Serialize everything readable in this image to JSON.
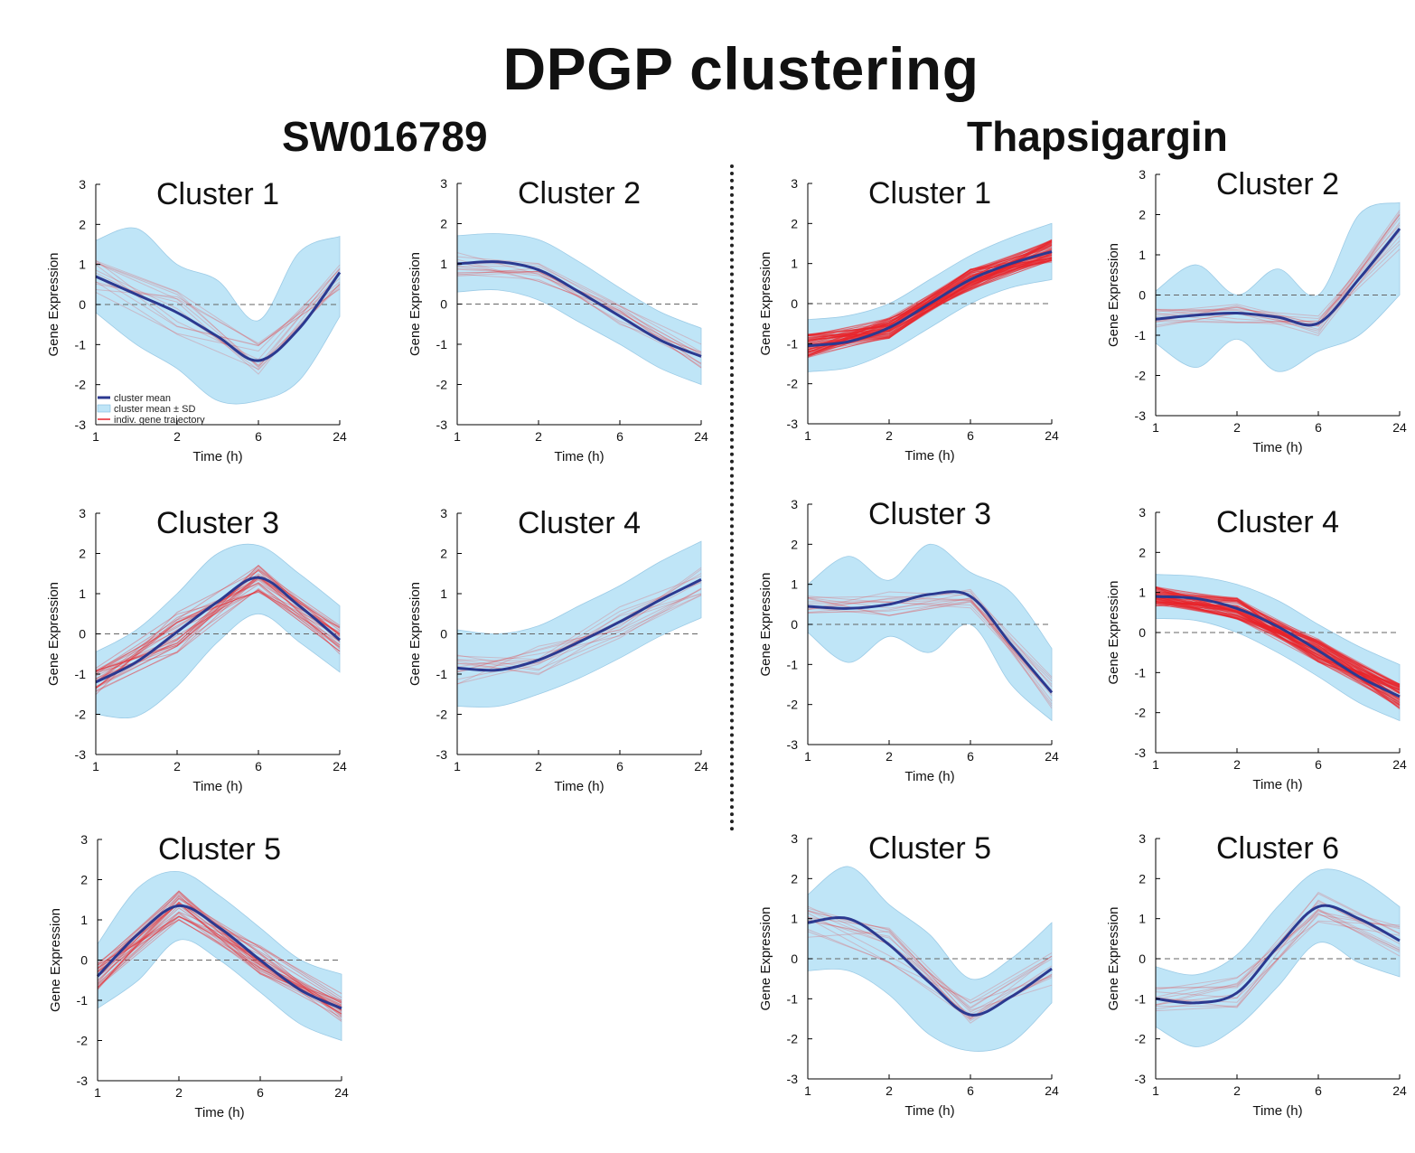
{
  "title": "DPGP clustering",
  "groups": [
    {
      "label": "SW016789"
    },
    {
      "label": "Thapsigargin"
    }
  ],
  "axis": {
    "xlabel": "Time (h)",
    "ylabel": "Gene Expression",
    "xticks": [
      "1",
      "2",
      "6",
      "24"
    ],
    "yticks": [
      "-3",
      "-2",
      "-1",
      "0",
      "1",
      "2",
      "3"
    ],
    "ylim": [
      -3,
      3
    ]
  },
  "legend": {
    "items": [
      "cluster mean",
      "cluster mean ± SD",
      "indiv. gene trajectory"
    ]
  },
  "colors": {
    "mean": "#2b3990",
    "band": "#bfe5f7",
    "trajectory": "#e8242a",
    "zero_line": "#666666"
  },
  "chart_data": [
    {
      "type": "line",
      "group": "SW016789",
      "title": "Cluster 1",
      "density": "light",
      "x": [
        0,
        0.5,
        1,
        1.5,
        2,
        2.5,
        3
      ],
      "mean": [
        0.7,
        0.25,
        -0.2,
        -0.8,
        -1.4,
        -0.6,
        0.8
      ],
      "upper": [
        1.6,
        1.9,
        1.0,
        0.6,
        -0.4,
        1.3,
        1.7
      ],
      "lower": [
        -0.2,
        -1.0,
        -1.6,
        -2.4,
        -2.4,
        -1.9,
        -0.3
      ]
    },
    {
      "type": "line",
      "group": "SW016789",
      "title": "Cluster 2",
      "density": "light",
      "x": [
        0,
        0.5,
        1,
        1.5,
        2,
        2.5,
        3
      ],
      "mean": [
        1.0,
        1.05,
        0.85,
        0.3,
        -0.3,
        -0.9,
        -1.3
      ],
      "upper": [
        1.7,
        1.75,
        1.6,
        1.05,
        0.4,
        -0.2,
        -0.6
      ],
      "lower": [
        0.3,
        0.35,
        0.1,
        -0.45,
        -1.0,
        -1.6,
        -2.0
      ]
    },
    {
      "type": "line",
      "group": "SW016789",
      "title": "Cluster 3",
      "density": "medium",
      "x": [
        0,
        0.5,
        1,
        1.5,
        2,
        2.5,
        3
      ],
      "mean": [
        -1.2,
        -0.7,
        0.05,
        0.8,
        1.4,
        0.7,
        -0.15
      ],
      "upper": [
        -0.45,
        0.1,
        1.0,
        2.0,
        2.2,
        1.5,
        0.7
      ],
      "lower": [
        -2.0,
        -2.05,
        -1.3,
        -0.2,
        0.5,
        -0.2,
        -0.95
      ]
    },
    {
      "type": "line",
      "group": "SW016789",
      "title": "Cluster 4",
      "density": "light",
      "x": [
        0,
        0.5,
        1,
        1.5,
        2,
        2.5,
        3
      ],
      "mean": [
        -0.85,
        -0.9,
        -0.65,
        -0.2,
        0.3,
        0.85,
        1.35
      ],
      "upper": [
        0.1,
        0.0,
        0.2,
        0.7,
        1.2,
        1.8,
        2.3
      ],
      "lower": [
        -1.8,
        -1.8,
        -1.5,
        -1.1,
        -0.6,
        -0.05,
        0.4
      ]
    },
    {
      "type": "line",
      "group": "SW016789",
      "title": "Cluster 5",
      "density": "medium",
      "x": [
        0,
        0.5,
        1,
        1.5,
        2,
        2.5,
        3
      ],
      "mean": [
        -0.4,
        0.65,
        1.35,
        0.8,
        0.0,
        -0.75,
        -1.2
      ],
      "upper": [
        0.4,
        1.8,
        2.2,
        1.6,
        0.8,
        0.0,
        -0.35
      ],
      "lower": [
        -1.2,
        -0.5,
        0.5,
        0.0,
        -0.8,
        -1.6,
        -2.0
      ]
    },
    {
      "type": "line",
      "group": "Thapsigargin",
      "title": "Cluster 1",
      "density": "heavy",
      "x": [
        0,
        0.5,
        1,
        1.5,
        2,
        2.5,
        3
      ],
      "mean": [
        -1.05,
        -0.95,
        -0.6,
        0.0,
        0.6,
        1.0,
        1.3
      ],
      "upper": [
        -0.4,
        -0.3,
        0.0,
        0.6,
        1.2,
        1.65,
        2.0
      ],
      "lower": [
        -1.7,
        -1.6,
        -1.2,
        -0.6,
        0.0,
        0.4,
        0.6
      ]
    },
    {
      "type": "line",
      "group": "Thapsigargin",
      "title": "Cluster 2",
      "density": "light",
      "x": [
        0,
        0.5,
        1,
        1.5,
        2,
        2.5,
        3
      ],
      "mean": [
        -0.6,
        -0.5,
        -0.45,
        -0.55,
        -0.7,
        0.4,
        1.65
      ],
      "upper": [
        0.1,
        0.75,
        0.0,
        0.65,
        0.0,
        2.0,
        2.3
      ],
      "lower": [
        -1.2,
        -1.8,
        -1.1,
        -1.9,
        -1.4,
        -1.0,
        0.0
      ]
    },
    {
      "type": "line",
      "group": "Thapsigargin",
      "title": "Cluster 3",
      "density": "light",
      "x": [
        0,
        0.5,
        1,
        1.5,
        2,
        2.5,
        3
      ],
      "mean": [
        0.45,
        0.4,
        0.5,
        0.75,
        0.7,
        -0.5,
        -1.7
      ],
      "upper": [
        1.0,
        1.7,
        1.1,
        2.0,
        1.3,
        0.8,
        -0.6
      ],
      "lower": [
        -0.2,
        -0.95,
        -0.3,
        -0.7,
        0.0,
        -1.5,
        -2.4
      ]
    },
    {
      "type": "line",
      "group": "Thapsigargin",
      "title": "Cluster 4",
      "density": "heavy",
      "x": [
        0,
        0.5,
        1,
        1.5,
        2,
        2.5,
        3
      ],
      "mean": [
        0.9,
        0.85,
        0.6,
        0.15,
        -0.45,
        -1.1,
        -1.6
      ],
      "upper": [
        1.45,
        1.4,
        1.2,
        0.8,
        0.2,
        -0.35,
        -0.8
      ],
      "lower": [
        0.35,
        0.3,
        0.0,
        -0.5,
        -1.1,
        -1.75,
        -2.2
      ]
    },
    {
      "type": "line",
      "group": "Thapsigargin",
      "title": "Cluster 5",
      "density": "light",
      "x": [
        0,
        0.5,
        1,
        1.5,
        2,
        2.5,
        3
      ],
      "mean": [
        0.9,
        1.0,
        0.35,
        -0.6,
        -1.4,
        -0.95,
        -0.25
      ],
      "upper": [
        1.6,
        2.3,
        1.35,
        0.6,
        -0.5,
        0.0,
        0.9
      ],
      "lower": [
        -0.3,
        -0.3,
        -0.9,
        -1.9,
        -2.3,
        -2.1,
        -1.1
      ]
    },
    {
      "type": "line",
      "group": "Thapsigargin",
      "title": "Cluster 6",
      "density": "light",
      "x": [
        0,
        0.5,
        1,
        1.5,
        2,
        2.5,
        3
      ],
      "mean": [
        -1.0,
        -1.1,
        -0.85,
        0.3,
        1.3,
        1.0,
        0.45
      ],
      "upper": [
        -0.2,
        -0.4,
        0.1,
        1.3,
        2.2,
        2.0,
        1.3
      ],
      "lower": [
        -1.7,
        -2.2,
        -1.7,
        -0.7,
        0.4,
        -0.1,
        -0.45
      ]
    }
  ]
}
